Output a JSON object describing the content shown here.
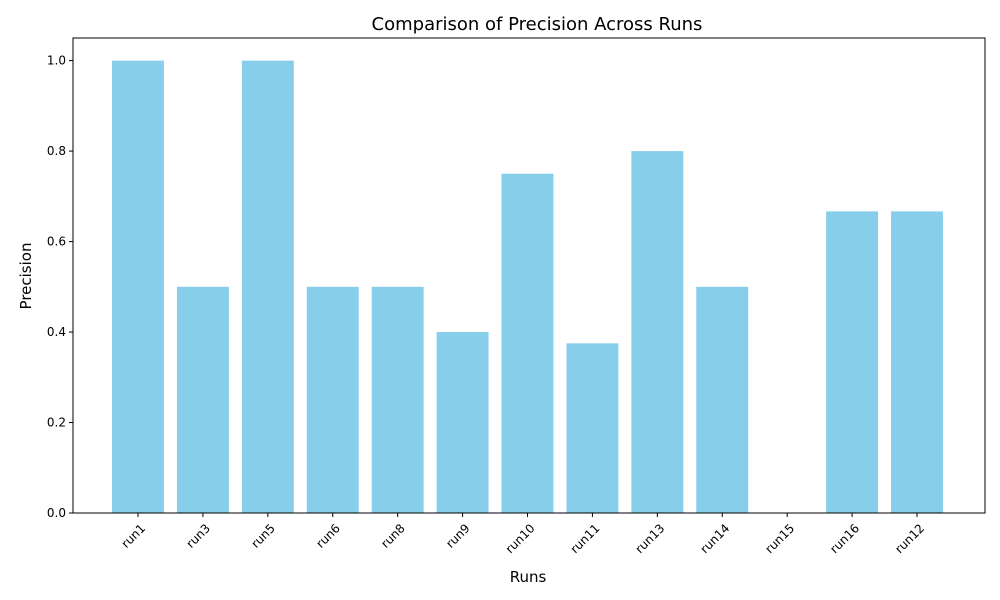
{
  "chart_data": {
    "type": "bar",
    "title": "Comparison of Precision Across Runs",
    "xlabel": "Runs",
    "ylabel": "Precision",
    "categories": [
      "run1",
      "run3",
      "run5",
      "run6",
      "run8",
      "run9",
      "run10",
      "run11",
      "run13",
      "run14",
      "run15",
      "run16",
      "run12"
    ],
    "values": [
      1.0,
      0.5,
      1.0,
      0.5,
      0.5,
      0.4,
      0.75,
      0.375,
      0.8,
      0.5,
      0.0,
      0.6667,
      0.6667
    ],
    "ylim": [
      0,
      1.05
    ],
    "yticks": [
      0.0,
      0.2,
      0.4,
      0.6,
      0.8,
      1.0
    ],
    "ytick_labels": [
      "0.0",
      "0.2",
      "0.4",
      "0.6",
      "0.8",
      "1.0"
    ],
    "bar_color": "#87CEEB",
    "grid": false,
    "xtick_rotation_deg": 45
  }
}
